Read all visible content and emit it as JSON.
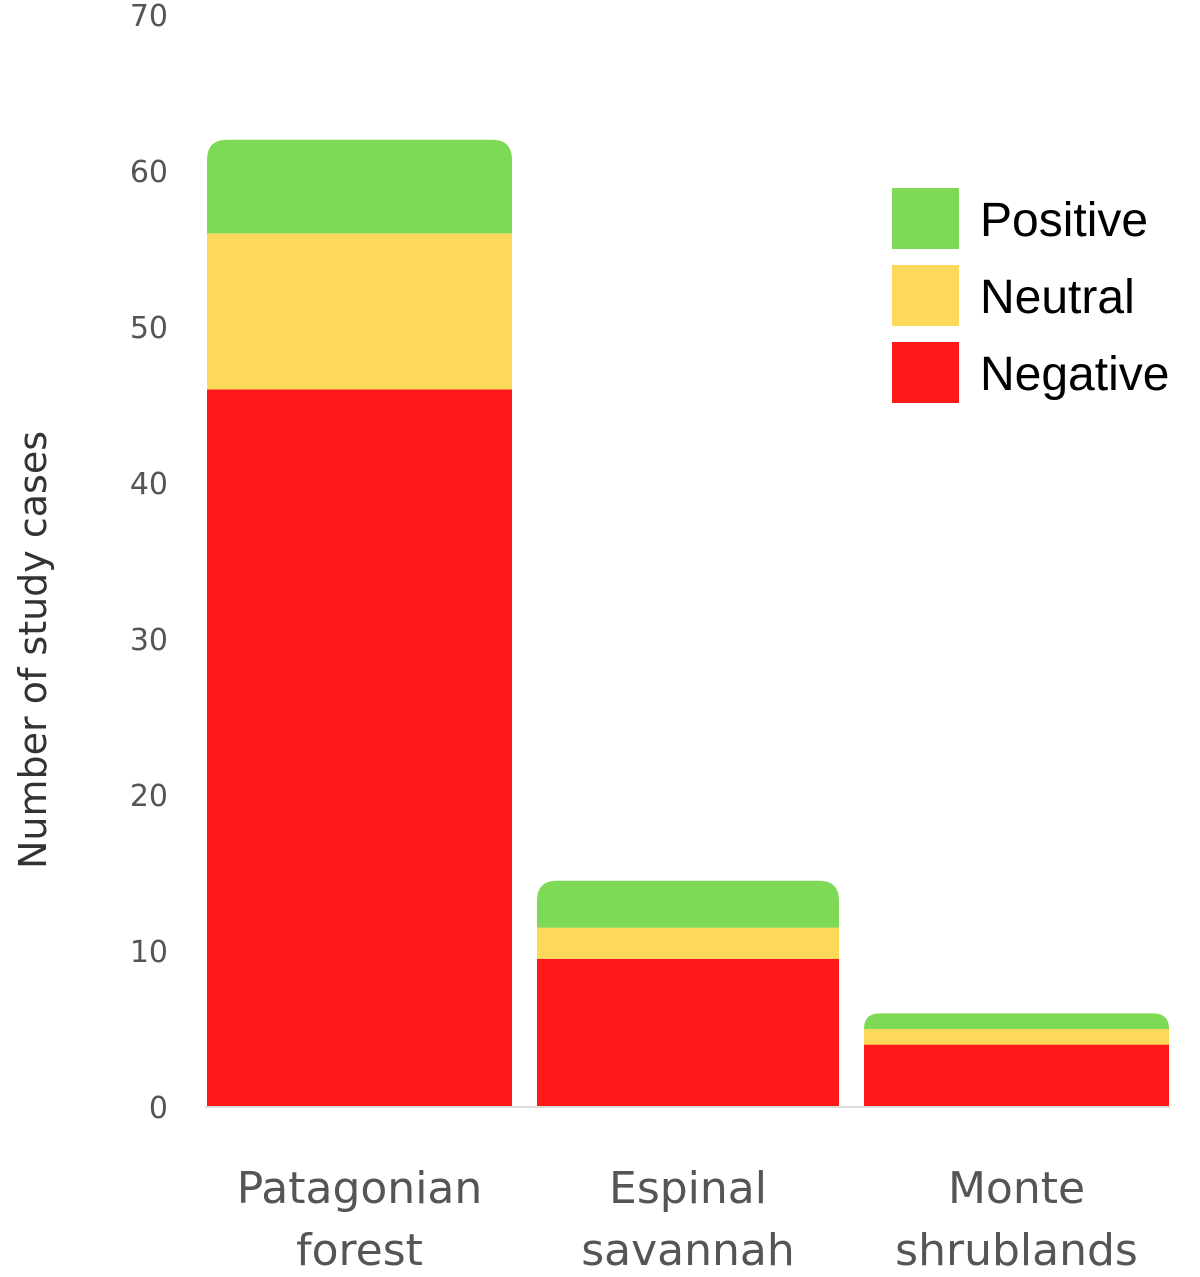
{
  "chart_data": {
    "type": "bar",
    "stacked": true,
    "categories": [
      [
        "Patagonian",
        "forest"
      ],
      [
        "Espinal",
        "savannah"
      ],
      [
        "Monte",
        "shrublands"
      ]
    ],
    "series": [
      {
        "name": "Negative",
        "color": "#ff1919",
        "values": [
          46,
          9.5,
          4
        ]
      },
      {
        "name": "Neutral",
        "color": "#fcd95a",
        "values": [
          10,
          2,
          1
        ]
      },
      {
        "name": "Positive",
        "color": "#7ed957",
        "values": [
          6,
          3,
          1
        ]
      }
    ],
    "legend_order": [
      "Positive",
      "Neutral",
      "Negative"
    ],
    "legend_placement": "top-right",
    "ylabel": "Number of study cases",
    "xlabel": "",
    "title": "",
    "ylim": [
      0,
      70
    ],
    "yticks": [
      0,
      10,
      20,
      30,
      40,
      50,
      60,
      70
    ],
    "grid": false
  }
}
